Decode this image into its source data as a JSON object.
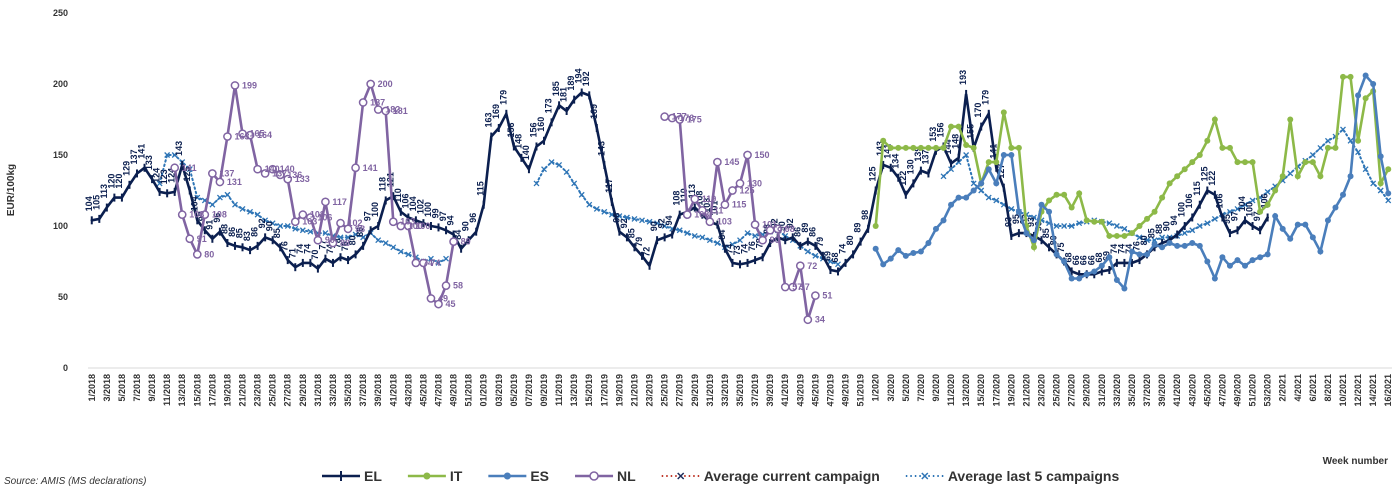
{
  "chart_data": {
    "type": "line",
    "y_label": "EUR/100kg",
    "x_label": "Week number",
    "source": "Source: AMIS (MS declarations)",
    "ylim": [
      0,
      250
    ],
    "yticks": [
      0,
      50,
      100,
      150,
      200,
      250
    ],
    "categories": [
      "1/2018",
      null,
      "3/2018",
      null,
      "5/2018",
      null,
      "7/2018",
      null,
      "9/2018",
      null,
      "11/2018",
      null,
      "13/2018",
      null,
      "15/2018",
      null,
      "17/2018",
      null,
      "19/2018",
      null,
      "21/2018",
      null,
      "23/2018",
      null,
      "25/2018",
      null,
      "27/2018",
      null,
      "29/2018",
      null,
      "31/2018",
      null,
      "33/2018",
      null,
      "35/2018",
      null,
      "37/2018",
      null,
      "39/2018",
      null,
      "41/2018",
      null,
      "43/2018",
      null,
      "45/2018",
      null,
      "47/2018",
      null,
      "49/2018",
      null,
      "51/2018",
      null,
      "01/2019",
      null,
      "03/2019",
      null,
      "05/2019",
      null,
      "07/2019",
      null,
      "09/2019",
      null,
      "11/2019",
      null,
      "13/2019",
      null,
      "15/2019",
      null,
      "17/2019",
      null,
      "19/2019",
      null,
      "21/2019",
      null,
      "23/2019",
      null,
      "25/2019",
      null,
      "27/2019",
      null,
      "29/2019",
      null,
      "31/2019",
      null,
      "33/2019",
      null,
      "35/2019",
      null,
      "37/2019",
      null,
      "39/2019",
      null,
      "41/2019",
      null,
      "43/2019",
      null,
      "45/2019",
      null,
      "47/2019",
      null,
      "49/2019",
      null,
      "51/2019",
      null,
      "1/2020",
      null,
      "3/2020",
      null,
      "5/2020",
      null,
      "7/2020",
      null,
      "9/2020",
      null,
      "11/2020",
      null,
      "13/2020",
      null,
      "15/2020",
      null,
      "17/2020",
      null,
      "19/2020",
      null,
      "21/2020",
      null,
      "23/2020",
      null,
      "25/2020",
      null,
      "27/2020",
      null,
      "29/2020",
      null,
      "31/2020",
      null,
      "33/2020",
      null,
      "35/2020",
      null,
      "37/2020",
      null,
      "39/2020",
      null,
      "41/2020",
      null,
      "43/2020",
      null,
      "45/2020",
      null,
      "47/2020",
      null,
      "49/2020",
      null,
      "51/2020",
      null,
      "53/2020",
      null,
      "2/2021",
      null,
      "4/2021",
      null,
      "6/2021",
      null,
      "8/2021",
      null,
      "10/2021",
      null,
      "12/2021",
      null,
      "14/2021",
      null,
      "16/2021"
    ],
    "series": [
      {
        "name": "EL",
        "color": "#0b1f4f",
        "marker": "dash",
        "line_style": "solid",
        "data_labels": true,
        "label_rotation": -90,
        "values": [
          104,
          105,
          113,
          120,
          120,
          129,
          137,
          141,
          133,
          124,
          123,
          124,
          143,
          125,
          104,
          97,
          91,
          96,
          88,
          86,
          85,
          83,
          86,
          92,
          90,
          85,
          76,
          71,
          74,
          74,
          70,
          77,
          74,
          78,
          76,
          80,
          86,
          97,
          100,
          118,
          121,
          110,
          106,
          104,
          102,
          100,
          99,
          97,
          94,
          84,
          90,
          96,
          115,
          163,
          169,
          179,
          156,
          148,
          140,
          156,
          160,
          173,
          185,
          181,
          189,
          194,
          192,
          169,
          143,
          117,
          96,
          92,
          85,
          79,
          72,
          90,
          92,
          94,
          108,
          110,
          113,
          108,
          103,
          101,
          84,
          74,
          73,
          74,
          76,
          78,
          88,
          92,
          90,
          92,
          86,
          89,
          86,
          79,
          69,
          68,
          74,
          80,
          89,
          98,
          125,
          143,
          141,
          134,
          122,
          130,
          139,
          137,
          153,
          156,
          144,
          148,
          193,
          155,
          170,
          179,
          141,
          127,
          93,
          95,
          95,
          93,
          90,
          85,
          80,
          75,
          68,
          66,
          66,
          66,
          68,
          69,
          74,
          74,
          74,
          76,
          80,
          85,
          88,
          90,
          94,
          100,
          106,
          115,
          125,
          122,
          106,
          95,
          97,
          104,
          100,
          97,
          106,
          null,
          null,
          null,
          null,
          null,
          null,
          null,
          null,
          null,
          null,
          null,
          null,
          null,
          null,
          null,
          null
        ]
      },
      {
        "name": "IT",
        "color": "#8db948",
        "marker": "circle",
        "line_style": "solid",
        "data_labels": false,
        "values": [
          null,
          null,
          null,
          null,
          null,
          null,
          null,
          null,
          null,
          null,
          null,
          null,
          null,
          null,
          null,
          null,
          null,
          null,
          null,
          null,
          null,
          null,
          null,
          null,
          null,
          null,
          null,
          null,
          null,
          null,
          null,
          null,
          null,
          null,
          null,
          null,
          null,
          null,
          null,
          null,
          null,
          null,
          null,
          null,
          null,
          null,
          null,
          null,
          null,
          null,
          null,
          null,
          null,
          null,
          null,
          null,
          null,
          null,
          null,
          null,
          null,
          null,
          null,
          null,
          null,
          null,
          null,
          null,
          null,
          null,
          null,
          null,
          null,
          null,
          null,
          null,
          null,
          null,
          null,
          null,
          null,
          null,
          null,
          null,
          null,
          null,
          null,
          null,
          null,
          null,
          null,
          null,
          null,
          null,
          null,
          null,
          null,
          null,
          null,
          null,
          null,
          null,
          null,
          null,
          100,
          160,
          155,
          155,
          155,
          155,
          155,
          155,
          155,
          155,
          170,
          170,
          157,
          155,
          130,
          145,
          145,
          180,
          155,
          155,
          100,
          85,
          110,
          118,
          122,
          122,
          113,
          123,
          104,
          103,
          103,
          93,
          93,
          93,
          95,
          100,
          105,
          110,
          120,
          130,
          135,
          140,
          145,
          150,
          160,
          175,
          155,
          155,
          145,
          145,
          145,
          110,
          115,
          125,
          135,
          175,
          135,
          145,
          145,
          135,
          155,
          155,
          205,
          205,
          160,
          190,
          195,
          130,
          140
        ]
      },
      {
        "name": "ES",
        "color": "#4a7ebb",
        "marker": "circle",
        "line_style": "solid",
        "data_labels": false,
        "values": [
          null,
          null,
          null,
          null,
          null,
          null,
          null,
          null,
          null,
          null,
          null,
          null,
          null,
          null,
          null,
          null,
          null,
          null,
          null,
          null,
          null,
          null,
          null,
          null,
          null,
          null,
          null,
          null,
          null,
          null,
          null,
          null,
          null,
          null,
          null,
          null,
          null,
          null,
          null,
          null,
          null,
          null,
          null,
          null,
          null,
          null,
          null,
          null,
          null,
          null,
          null,
          null,
          null,
          null,
          null,
          null,
          null,
          null,
          null,
          null,
          null,
          null,
          null,
          null,
          null,
          null,
          null,
          null,
          null,
          null,
          null,
          null,
          null,
          null,
          null,
          null,
          null,
          null,
          null,
          null,
          null,
          null,
          null,
          null,
          null,
          null,
          null,
          null,
          null,
          null,
          null,
          null,
          null,
          null,
          null,
          null,
          null,
          null,
          null,
          null,
          null,
          null,
          null,
          null,
          84,
          73,
          77,
          83,
          79,
          81,
          82,
          88,
          98,
          104,
          115,
          120,
          120,
          125,
          130,
          140,
          130,
          150,
          150,
          110,
          95,
          90,
          115,
          110,
          80,
          75,
          63,
          63,
          66,
          68,
          72,
          78,
          62,
          56,
          82,
          80,
          80,
          87,
          85,
          88,
          86,
          86,
          88,
          86,
          75,
          63,
          78,
          72,
          76,
          72,
          76,
          78,
          80,
          107,
          98,
          91,
          101,
          101,
          92,
          82,
          104,
          113,
          122,
          135,
          192,
          206,
          200,
          149,
          123
        ]
      },
      {
        "name": "NL",
        "color": "#8064a2",
        "marker": "open-circle",
        "line_style": "solid",
        "data_labels": true,
        "label_rotation": 0,
        "values": [
          null,
          null,
          null,
          null,
          null,
          null,
          null,
          null,
          null,
          null,
          null,
          141,
          108,
          91,
          80,
          108,
          137,
          131,
          163,
          199,
          165,
          164,
          140,
          137,
          140,
          136,
          133,
          103,
          108,
          106,
          90,
          117,
          88,
          102,
          98,
          141,
          187,
          200,
          182,
          181,
          103,
          100,
          100,
          74,
          74,
          49,
          45,
          58,
          89,
          null,
          null,
          null,
          null,
          null,
          null,
          null,
          null,
          null,
          null,
          null,
          null,
          null,
          null,
          null,
          null,
          null,
          null,
          null,
          null,
          null,
          null,
          null,
          null,
          null,
          null,
          null,
          177,
          176,
          175,
          108,
          119,
          111,
          103,
          145,
          115,
          125,
          130,
          150,
          101,
          90,
          97,
          98,
          57,
          57,
          72,
          34,
          51,
          null,
          null,
          null,
          null,
          null,
          null,
          null,
          null,
          null,
          null,
          null,
          null,
          null,
          null,
          null,
          null,
          null,
          null,
          null,
          null,
          null,
          null,
          null,
          null,
          null,
          null,
          null,
          null,
          null,
          null,
          null,
          null,
          null,
          null,
          null,
          null,
          null,
          null,
          null,
          null,
          null,
          null,
          null,
          null,
          null,
          null,
          null,
          null,
          null,
          null,
          null,
          null,
          null,
          null,
          null,
          null,
          null,
          null,
          null,
          null,
          null,
          null,
          null,
          null,
          null,
          null,
          null,
          null,
          null,
          null,
          null,
          null,
          null,
          null,
          null,
          null
        ]
      },
      {
        "name": "Average current campaign",
        "color": "#c0392b",
        "marker": "x",
        "line_style": "dotted",
        "data_labels": false,
        "values": [
          null,
          null,
          null,
          null,
          null,
          null,
          null,
          null,
          null,
          null,
          null,
          null,
          null,
          null,
          null,
          null,
          null,
          null,
          null,
          null,
          null,
          null,
          null,
          null,
          null,
          null,
          null,
          null,
          null,
          null,
          null,
          null,
          null,
          null,
          null,
          null,
          null,
          null,
          null,
          null,
          null,
          null,
          null,
          null,
          null,
          null,
          null,
          null,
          null,
          null,
          null,
          null,
          null,
          null,
          null,
          null,
          null,
          null,
          null,
          null,
          null,
          null,
          null,
          null,
          null,
          null,
          null,
          null,
          null,
          null,
          null,
          null,
          null,
          null,
          null,
          null,
          null,
          null,
          null,
          null,
          null,
          null,
          null,
          null,
          null,
          null,
          null,
          null,
          null,
          null,
          null,
          null,
          null,
          null,
          null,
          null,
          null,
          null,
          null,
          null,
          null,
          null,
          null,
          null,
          null,
          null,
          null,
          null,
          null,
          null,
          null,
          null,
          null,
          null,
          null,
          null,
          null,
          null,
          null,
          null,
          null,
          null,
          null,
          null,
          null,
          null,
          null,
          null,
          null,
          null,
          null,
          null,
          null,
          null,
          null,
          null,
          null,
          null,
          null,
          null,
          null,
          null,
          null,
          null,
          null,
          null,
          null,
          null,
          null,
          null,
          null,
          null,
          null,
          null,
          null,
          null,
          null,
          null,
          null,
          null,
          null,
          null,
          null,
          null,
          null,
          null,
          null,
          null,
          null,
          null,
          null,
          null,
          null
        ]
      },
      {
        "name": "Average last 5 campaigns",
        "color": "#2e75b6",
        "marker": "x",
        "line_style": "dotted",
        "data_labels": false,
        "values": [
          null,
          null,
          null,
          null,
          null,
          null,
          null,
          null,
          null,
          130,
          150,
          150,
          145,
          140,
          120,
          118,
          115,
          120,
          122,
          115,
          112,
          110,
          108,
          104,
          102,
          100,
          100,
          98,
          97,
          96,
          95,
          95,
          93,
          92,
          92,
          94,
          92,
          95,
          90,
          88,
          85,
          82,
          80,
          78,
          75,
          77,
          74,
          77,
          null,
          null,
          null,
          null,
          null,
          null,
          null,
          null,
          null,
          null,
          null,
          130,
          140,
          145,
          143,
          138,
          130,
          122,
          115,
          112,
          110,
          108,
          107,
          106,
          105,
          104,
          103,
          102,
          100,
          98,
          97,
          95,
          93,
          92,
          90,
          88,
          85,
          87,
          90,
          95,
          93,
          94,
          96,
          97,
          93,
          90,
          86,
          82,
          79,
          77,
          75,
          73,
          null,
          null,
          null,
          null,
          null,
          null,
          null,
          null,
          null,
          null,
          null,
          null,
          null,
          135,
          140,
          145,
          150,
          130,
          125,
          120,
          118,
          115,
          112,
          110,
          108,
          106,
          104,
          102,
          100,
          100,
          100,
          102,
          103,
          104,
          103,
          102,
          100,
          98,
          95,
          92,
          90,
          90,
          92,
          92,
          93,
          95,
          97,
          100,
          102,
          105,
          108,
          110,
          112,
          115,
          118,
          120,
          124,
          128,
          132,
          137,
          142,
          146,
          150,
          155,
          160,
          163,
          168,
          160,
          152,
          140,
          130,
          125,
          118
        ]
      }
    ]
  }
}
